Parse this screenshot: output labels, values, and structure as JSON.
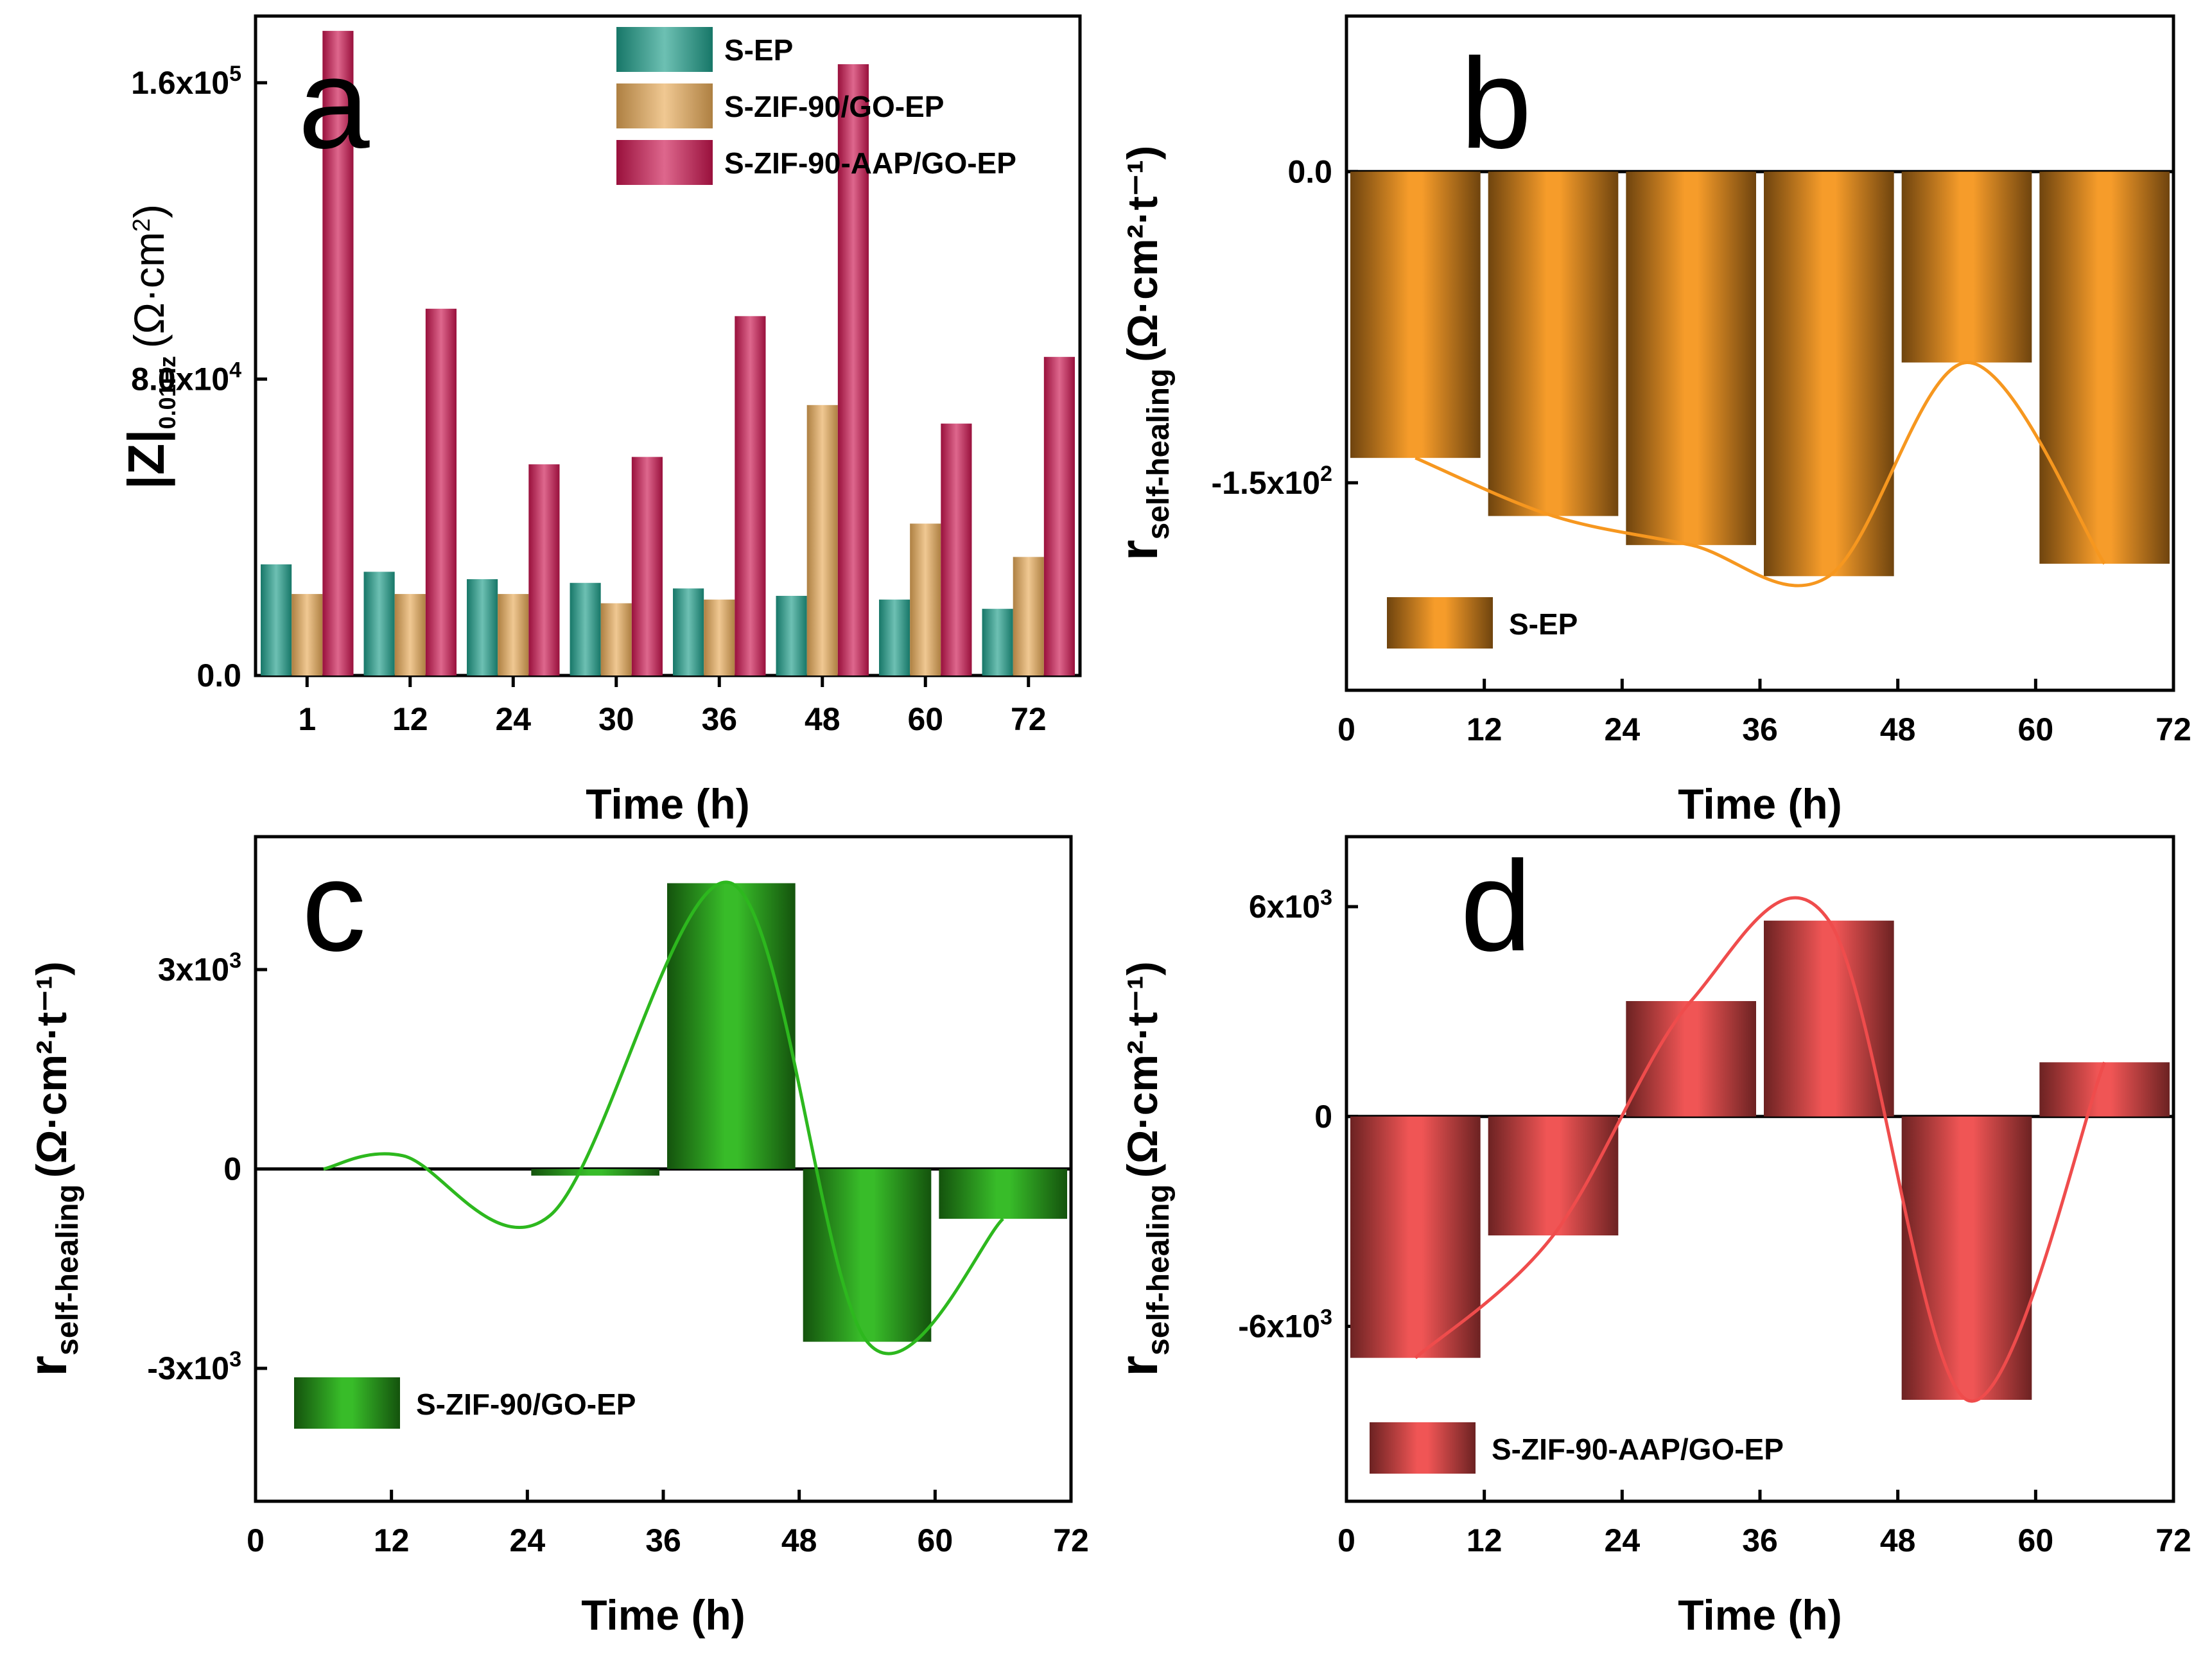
{
  "figure_title": "",
  "colors": {
    "S-EP_a": "#1f9e8a",
    "S-ZIF-90/GO-EP_a": "#e8ab58",
    "S-ZIF-90-AAP/GO-EP_a": "#cc1550",
    "S-EP_b": "#f6971f",
    "S-ZIF-90/GO-EP_c": "#2db81e",
    "S-ZIF-90-AAP/GO-EP_d": "#ef4c4c"
  },
  "chart_data": [
    {
      "panel": "a",
      "type": "bar",
      "title": "",
      "xlabel": "Time (h)",
      "ylabel_main": "|Z|",
      "ylabel_sub": "0.01Hz",
      "ylabel_unit_open": "(Ω·cm",
      "ylabel_unit_sup": "2",
      "ylabel_unit_close": ")",
      "categories": [
        "1",
        "12",
        "24",
        "30",
        "36",
        "48",
        "60",
        "72"
      ],
      "series": [
        {
          "name": "S-EP",
          "values": [
            30000,
            28000,
            26000,
            25000,
            23500,
            21500,
            20500,
            18000
          ]
        },
        {
          "name": "S-ZIF-90/GO-EP",
          "values": [
            22000,
            22000,
            22000,
            19500,
            20500,
            73000,
            41000,
            32000
          ]
        },
        {
          "name": "S-ZIF-90-AAP/GO-EP",
          "values": [
            174000,
            99000,
            57000,
            59000,
            97000,
            165000,
            68000,
            86000
          ]
        }
      ],
      "ylim": [
        0,
        178000
      ],
      "yticks": [
        {
          "value": 0,
          "mantissa": "0.0",
          "exp": ""
        },
        {
          "value": 80000,
          "mantissa": "8.0x10",
          "exp": "4"
        },
        {
          "value": 160000,
          "mantissa": "1.6x10",
          "exp": "5"
        }
      ],
      "legend": "top-center"
    },
    {
      "panel": "b",
      "type": "bar",
      "title": "",
      "xlabel": "Time (h)",
      "ylabel_main": "r",
      "ylabel_sub": "self-healing",
      "ylabel_unit": "(Ω·cm²·t⁻¹)",
      "x_ticks": [
        "0",
        "12",
        "24",
        "36",
        "48",
        "60",
        "72"
      ],
      "series": [
        {
          "name": "S-EP",
          "x_start": [
            0,
            12,
            24,
            36,
            48,
            60
          ],
          "values": [
            -138,
            -166,
            -180,
            -195,
            -92,
            -189
          ]
        }
      ],
      "ylim": [
        -250,
        75
      ],
      "yticks": [
        {
          "value": 0,
          "mantissa": "0.0",
          "exp": ""
        },
        {
          "value": -150,
          "mantissa": "-1.5x10",
          "exp": "2"
        }
      ],
      "legend": "bottom-left"
    },
    {
      "panel": "c",
      "type": "bar",
      "title": "",
      "xlabel": "Time (h)",
      "ylabel_main": "r",
      "ylabel_sub": "self-healing",
      "ylabel_unit": "(Ω·cm²·t⁻¹)",
      "x_ticks": [
        "0",
        "12",
        "24",
        "36",
        "48",
        "60",
        "72"
      ],
      "series": [
        {
          "name": "S-ZIF-90/GO-EP",
          "x_start": [
            24,
            36,
            48,
            60
          ],
          "values": [
            -100,
            4300,
            -2600,
            -750
          ]
        }
      ],
      "ylim": [
        -5000,
        5000
      ],
      "yticks": [
        {
          "value": 3000,
          "mantissa": "3x10",
          "exp": "3"
        },
        {
          "value": 0,
          "mantissa": "0",
          "exp": ""
        },
        {
          "value": -3000,
          "mantissa": "-3x10",
          "exp": "3"
        }
      ],
      "legend": "bottom-left"
    },
    {
      "panel": "d",
      "type": "bar",
      "title": "",
      "xlabel": "Time (h)",
      "ylabel_main": "r",
      "ylabel_sub": "self-healing",
      "ylabel_unit": "(Ω·cm²·t⁻¹)",
      "x_ticks": [
        "0",
        "12",
        "24",
        "36",
        "48",
        "60",
        "72"
      ],
      "series": [
        {
          "name": "S-ZIF-90-AAP/GO-EP",
          "x_start": [
            0,
            12,
            24,
            36,
            48,
            60
          ],
          "values": [
            -6900,
            -3400,
            3300,
            5600,
            -8100,
            1550
          ]
        }
      ],
      "ylim": [
        -11000,
        8000
      ],
      "yticks": [
        {
          "value": 6000,
          "mantissa": "6x10",
          "exp": "3"
        },
        {
          "value": 0,
          "mantissa": "0",
          "exp": ""
        },
        {
          "value": -6000,
          "mantissa": "-6x10",
          "exp": "3"
        }
      ],
      "legend": "bottom-left"
    }
  ]
}
